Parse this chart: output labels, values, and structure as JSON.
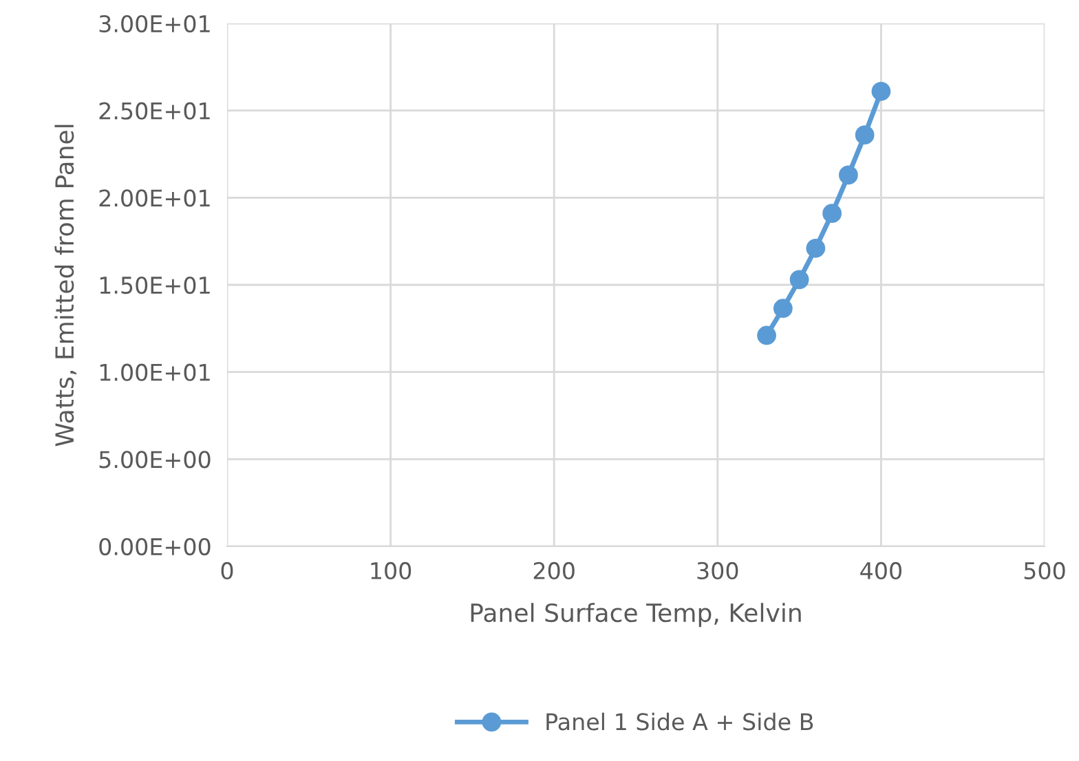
{
  "chart_data": {
    "type": "line",
    "xlabel": "Panel Surface Temp, Kelvin",
    "ylabel": "Watts, Emitted from Panel",
    "x": [
      330,
      340,
      350,
      360,
      370,
      380,
      390,
      400
    ],
    "series": [
      {
        "name": "Panel 1 Side A + Side B",
        "color": "#5b9bd5",
        "values": [
          12.1,
          13.65,
          15.3,
          17.1,
          19.1,
          21.3,
          23.6,
          26.1
        ]
      }
    ],
    "xlim": [
      0,
      500
    ],
    "xticks": [
      0,
      100,
      200,
      300,
      400,
      500
    ],
    "ylim": [
      0,
      30
    ],
    "yticks": [
      {
        "value": 0,
        "label": "0.00E+00"
      },
      {
        "value": 5,
        "label": "5.00E+00"
      },
      {
        "value": 10,
        "label": "1.00E+01"
      },
      {
        "value": 15,
        "label": "1.50E+01"
      },
      {
        "value": 20,
        "label": "2.00E+01"
      },
      {
        "value": 25,
        "label": "2.50E+01"
      },
      {
        "value": 30,
        "label": "3.00E+01"
      }
    ],
    "grid": true,
    "legend": "bottom",
    "marker": "circle",
    "line_style": "solid"
  }
}
